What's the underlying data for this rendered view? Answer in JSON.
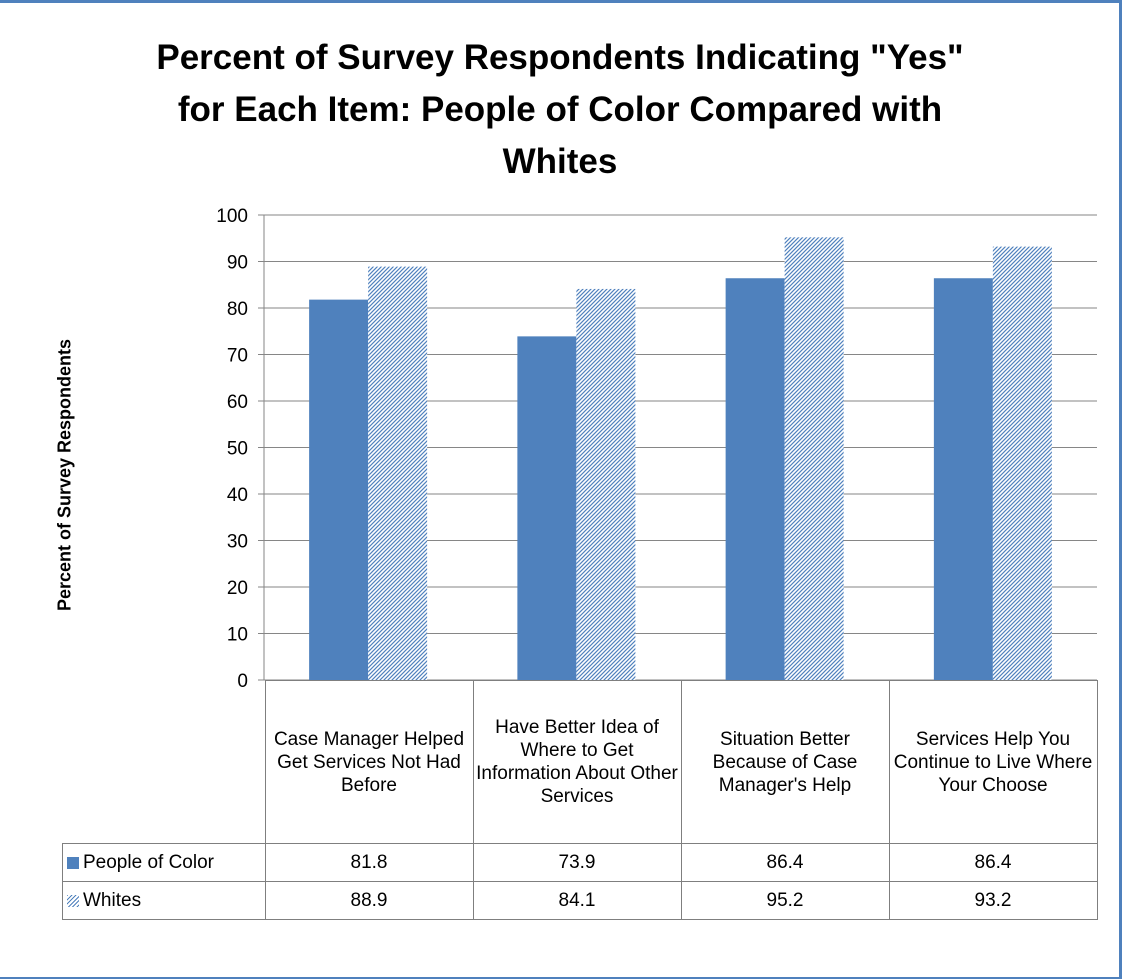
{
  "chart_data": {
    "type": "bar",
    "title": "Percent of Survey Respondents Indicating \"Yes\"\nfor Each Item:  People of Color Compared with\nWhites",
    "ylabel": "Percent of Survey Respondents",
    "xlabel": "",
    "ylim": [
      0,
      100
    ],
    "yticks": [
      0,
      10,
      20,
      30,
      40,
      50,
      60,
      70,
      80,
      90,
      100
    ],
    "grid": true,
    "legend": "data-table",
    "categories": [
      "Case Manager Helped Get Services Not Had Before",
      "Have Better Idea of Where to Get Information About Other Services",
      "Situation Better Because of Case Manager's Help",
      "Services Help You Continue to Live Where Your Choose"
    ],
    "series": [
      {
        "name": "People of Color",
        "values": [
          81.8,
          73.9,
          86.4,
          86.4
        ],
        "value_labels": [
          "81.8",
          "73.9",
          "86.4",
          "86.4"
        ],
        "color": "#4f81bd",
        "fill": "solid"
      },
      {
        "name": "Whites",
        "values": [
          88.9,
          84.1,
          95.2,
          93.2
        ],
        "value_labels": [
          "88.9",
          "84.1",
          "95.2",
          "93.2"
        ],
        "color": "#4f81bd",
        "fill": "diagonal-hatch"
      }
    ]
  }
}
